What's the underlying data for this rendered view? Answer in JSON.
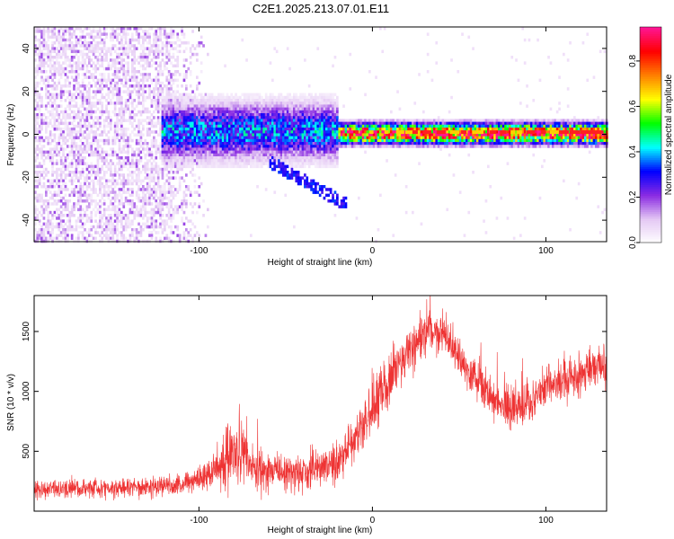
{
  "title": "C2E1.2025.213.07.01.E11",
  "chart_data": [
    {
      "type": "heatmap",
      "xlabel": "Height of straight line (km)",
      "ylabel": "Frequency (Hz)",
      "xlim": [
        -195,
        135
      ],
      "ylim": [
        -50,
        50
      ],
      "xticks": [
        -100,
        0,
        100
      ],
      "yticks": [
        -40,
        -20,
        0,
        20,
        40
      ],
      "colorbar": {
        "label": "Normalized spectral amplitude",
        "range": [
          0,
          0.95
        ],
        "ticks": [
          0.0,
          0.2,
          0.4,
          0.6,
          0.8
        ],
        "colormap": [
          "#ffffff",
          "#e4c8f4",
          "#8a2be2",
          "#0000ff",
          "#00ffff",
          "#00ff00",
          "#ffff00",
          "#ff8000",
          "#ff0000",
          "#ff1493"
        ]
      },
      "features": [
        {
          "x_range": [
            -195,
            -95
          ],
          "freq_range": [
            -50,
            50
          ],
          "amplitude": 0.15,
          "desc": "broadband noise"
        },
        {
          "x_range": [
            -122,
            -20
          ],
          "freq_center": 2,
          "freq_halfwidth": 8,
          "amplitude": 0.35
        },
        {
          "x_range": [
            -20,
            135
          ],
          "freq_center": 1,
          "freq_halfwidth": 3,
          "amplitude": 0.85
        }
      ]
    },
    {
      "type": "line",
      "xlabel": "Height of straight line (km)",
      "ylabel": "SNR (10 * v/v)",
      "xlim": [
        -195,
        135
      ],
      "ylim": [
        0,
        1800
      ],
      "xticks": [
        -100,
        0,
        100
      ],
      "yticks": [
        500,
        1000,
        1500
      ],
      "color": "#ee3333",
      "series": [
        {
          "x": [
            -195,
            -170,
            -140,
            -110,
            -95,
            -82,
            -78,
            -70,
            -55,
            -40,
            -20,
            -10,
            0,
            15,
            30,
            40,
            50,
            60,
            70,
            80,
            90,
            100,
            110,
            120,
            130
          ],
          "mean": [
            180,
            190,
            200,
            220,
            300,
            480,
            500,
            380,
            320,
            320,
            400,
            600,
            850,
            1250,
            1450,
            1500,
            1300,
            1100,
            950,
            850,
            900,
            1050,
            1080,
            1150,
            1220
          ],
          "spread": [
            70,
            70,
            70,
            80,
            110,
            230,
            260,
            180,
            150,
            150,
            170,
            200,
            220,
            200,
            180,
            170,
            160,
            150,
            160,
            160,
            170,
            170,
            160,
            160,
            170
          ]
        }
      ]
    }
  ]
}
